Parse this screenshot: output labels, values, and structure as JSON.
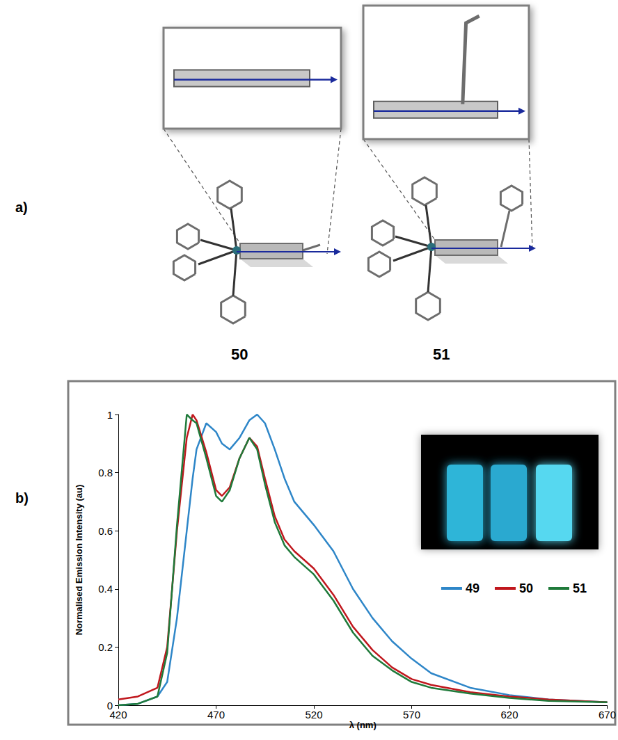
{
  "figure": {
    "panel_a": {
      "label": "a)",
      "structures": [
        "50",
        "51"
      ]
    },
    "panel_b": {
      "label": "b)"
    }
  },
  "chart_data": {
    "type": "line",
    "x_label": "λ (nm)",
    "y_label": "Normalised Emission Intensity (au)",
    "x": [
      420,
      430,
      440,
      445,
      450,
      455,
      458,
      460,
      465,
      470,
      473,
      477,
      482,
      487,
      491,
      495,
      500,
      505,
      510,
      520,
      530,
      540,
      550,
      560,
      570,
      580,
      600,
      620,
      640,
      670
    ],
    "series": [
      {
        "name": "49",
        "color": "#2e86c8",
        "values": [
          0,
          0.005,
          0.03,
          0.08,
          0.3,
          0.6,
          0.78,
          0.88,
          0.97,
          0.94,
          0.9,
          0.88,
          0.92,
          0.98,
          1.0,
          0.97,
          0.88,
          0.78,
          0.7,
          0.62,
          0.53,
          0.4,
          0.3,
          0.22,
          0.16,
          0.11,
          0.06,
          0.035,
          0.02,
          0.01
        ]
      },
      {
        "name": "50",
        "color": "#c0171d",
        "values": [
          0.02,
          0.03,
          0.06,
          0.2,
          0.6,
          0.92,
          1.0,
          0.98,
          0.87,
          0.74,
          0.72,
          0.75,
          0.85,
          0.92,
          0.89,
          0.78,
          0.65,
          0.57,
          0.53,
          0.47,
          0.38,
          0.27,
          0.19,
          0.13,
          0.09,
          0.07,
          0.045,
          0.03,
          0.02,
          0.01
        ]
      },
      {
        "name": "51",
        "color": "#1f7a3a",
        "values": [
          0,
          0.005,
          0.03,
          0.18,
          0.62,
          1.0,
          0.98,
          0.97,
          0.85,
          0.72,
          0.7,
          0.74,
          0.85,
          0.92,
          0.88,
          0.76,
          0.63,
          0.55,
          0.51,
          0.45,
          0.36,
          0.25,
          0.17,
          0.12,
          0.08,
          0.06,
          0.04,
          0.025,
          0.015,
          0.01
        ]
      }
    ],
    "xlim": [
      420,
      670
    ],
    "xticks": [
      420,
      470,
      520,
      570,
      620,
      670
    ],
    "ylim": [
      0,
      1
    ],
    "yticks": [
      0,
      0.2,
      0.4,
      0.6,
      0.8,
      1
    ],
    "grid": false,
    "legend": "right"
  }
}
